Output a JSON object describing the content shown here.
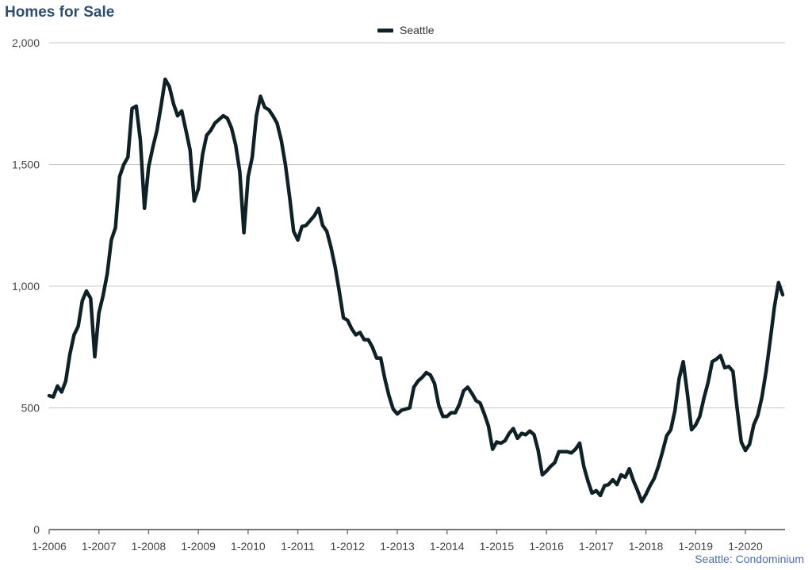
{
  "title": "Homes for Sale",
  "source_label": "Seattle: Condominium",
  "chart_data": {
    "type": "line",
    "title": "Homes for Sale",
    "xlabel": "",
    "ylabel": "",
    "ylim": [
      0,
      2000
    ],
    "yticks": [
      0,
      500,
      1000,
      1500,
      2000
    ],
    "ytick_labels": [
      "0",
      "500",
      "1,000",
      "1,500",
      "2,000"
    ],
    "xtick_labels": [
      "1-2006",
      "1-2007",
      "1-2008",
      "1-2009",
      "1-2010",
      "1-2011",
      "1-2012",
      "1-2013",
      "1-2014",
      "1-2015",
      "1-2016",
      "1-2017",
      "1-2018",
      "1-2019",
      "1-2020"
    ],
    "x_start": "1-2006",
    "x_end": "10-2020",
    "frequency": "monthly",
    "grid": "horizontal",
    "legend_position": "top-center",
    "series": [
      {
        "name": "Seattle",
        "color": "#0d2126",
        "values": [
          550,
          545,
          590,
          565,
          610,
          720,
          800,
          835,
          940,
          980,
          950,
          710,
          890,
          960,
          1050,
          1190,
          1240,
          1450,
          1500,
          1530,
          1730,
          1740,
          1600,
          1320,
          1490,
          1570,
          1640,
          1740,
          1850,
          1820,
          1750,
          1700,
          1720,
          1640,
          1560,
          1350,
          1400,
          1540,
          1620,
          1640,
          1670,
          1685,
          1700,
          1690,
          1650,
          1580,
          1470,
          1220,
          1450,
          1530,
          1700,
          1780,
          1735,
          1725,
          1700,
          1670,
          1600,
          1500,
          1370,
          1225,
          1190,
          1245,
          1250,
          1270,
          1290,
          1320,
          1250,
          1225,
          1160,
          1080,
          980,
          870,
          860,
          825,
          800,
          810,
          780,
          780,
          750,
          705,
          705,
          620,
          550,
          495,
          475,
          490,
          495,
          500,
          585,
          610,
          625,
          645,
          635,
          600,
          510,
          465,
          465,
          480,
          480,
          515,
          570,
          585,
          560,
          530,
          520,
          475,
          425,
          330,
          360,
          355,
          365,
          395,
          415,
          375,
          395,
          390,
          405,
          390,
          325,
          225,
          240,
          260,
          275,
          320,
          320,
          320,
          315,
          330,
          355,
          260,
          200,
          150,
          160,
          140,
          180,
          185,
          205,
          185,
          225,
          215,
          250,
          200,
          160,
          115,
          145,
          180,
          210,
          260,
          320,
          385,
          410,
          490,
          620,
          690,
          560,
          410,
          430,
          465,
          540,
          605,
          690,
          700,
          715,
          665,
          670,
          650,
          500,
          360,
          325,
          350,
          430,
          470,
          545,
          650,
          780,
          915,
          1015,
          965
        ]
      }
    ]
  }
}
